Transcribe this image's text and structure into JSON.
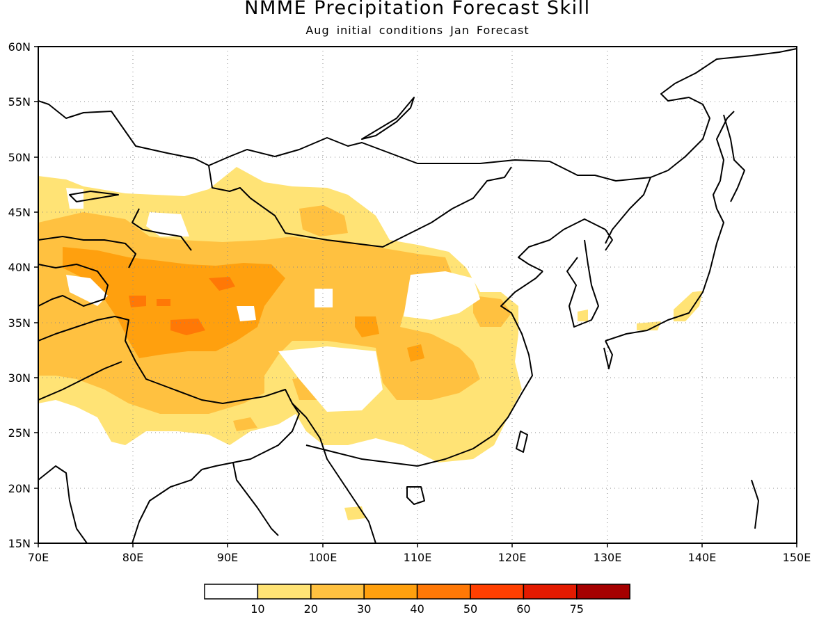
{
  "title": "NMME Precipitation Forecast Skill",
  "subtitle": "Aug initial conditions  Jan Forecast",
  "map": {
    "lon_range": [
      70,
      150
    ],
    "lat_range": [
      15,
      60
    ],
    "lon_ticks": [
      "70E",
      "80E",
      "90E",
      "100E",
      "110E",
      "120E",
      "130E",
      "140E",
      "150E"
    ],
    "lat_ticks": [
      "15N",
      "20N",
      "25N",
      "30N",
      "35N",
      "40N",
      "45N",
      "50N",
      "55N",
      "60N"
    ],
    "gridlines": "dotted"
  },
  "colorbar": {
    "labels": [
      "10",
      "20",
      "30",
      "40",
      "50",
      "60",
      "75"
    ],
    "colors": [
      "#ffffff",
      "#ffe375",
      "#ffc140",
      "#ffa00e",
      "#ff7806",
      "#ff3f00",
      "#e31a00",
      "#a50000"
    ]
  }
}
